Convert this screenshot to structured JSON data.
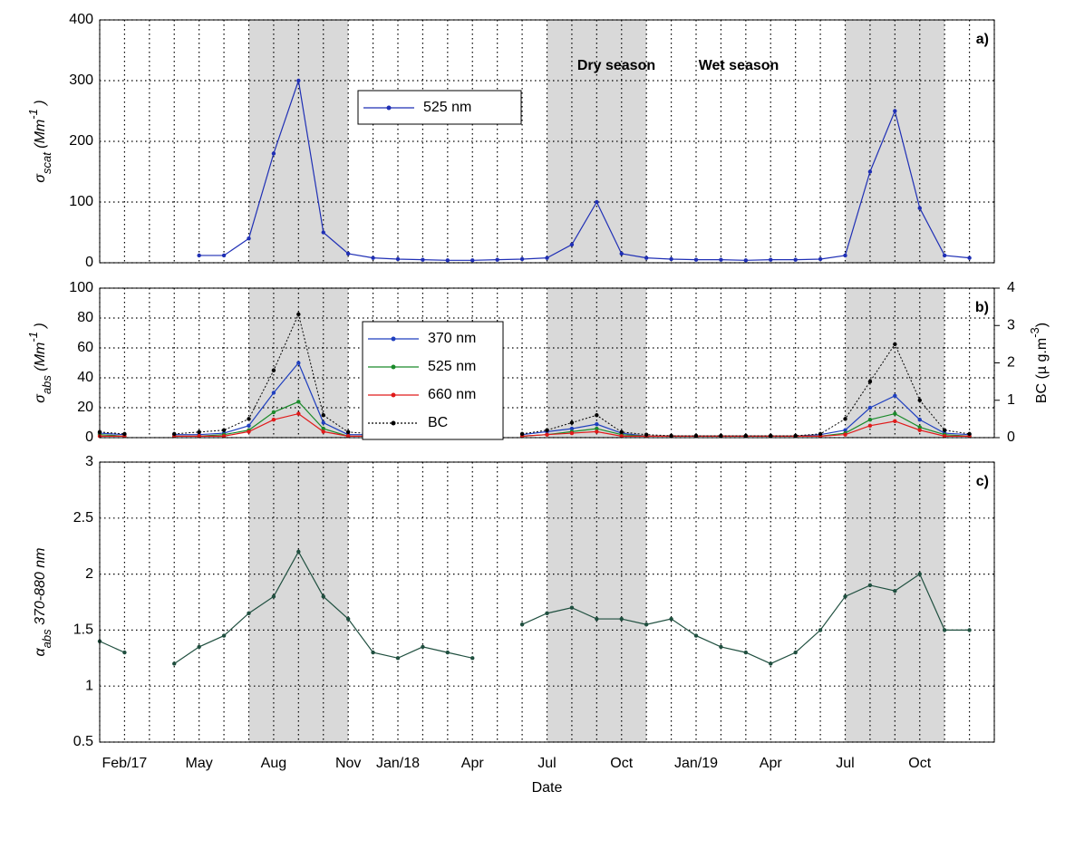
{
  "chart_data": [
    {
      "type": "line",
      "panel_label": "a)",
      "y_label": [
        {
          "text": "σ"
        },
        {
          "text": "scat",
          "shift": "sub"
        },
        {
          "text": " (Mm"
        },
        {
          "text": "-1",
          "shift": "sup"
        },
        {
          "text": " )"
        }
      ],
      "annotations": [
        "Dry season",
        "Wet season"
      ],
      "x": [
        "2017-01",
        "2017-02",
        "2017-03",
        "2017-04",
        "2017-05",
        "2017-06",
        "2017-07",
        "2017-08",
        "2017-09",
        "2017-10",
        "2017-11",
        "2017-12",
        "2018-01",
        "2018-02",
        "2018-03",
        "2018-04",
        "2018-05",
        "2018-06",
        "2018-07",
        "2018-08",
        "2018-09",
        "2018-10",
        "2018-11",
        "2018-12",
        "2019-01",
        "2019-02",
        "2019-03",
        "2019-04",
        "2019-05",
        "2019-06",
        "2019-07",
        "2019-08",
        "2019-09",
        "2019-10",
        "2019-11",
        "2019-12"
      ],
      "xlim": [
        "2017-01",
        "2020-01"
      ],
      "xminorticks": [
        "2017-01",
        "2017-02",
        "2017-03",
        "2017-04",
        "2017-05",
        "2017-06",
        "2017-07",
        "2017-08",
        "2017-09",
        "2017-10",
        "2017-11",
        "2017-12",
        "2018-01",
        "2018-02",
        "2018-03",
        "2018-04",
        "2018-05",
        "2018-06",
        "2018-07",
        "2018-08",
        "2018-09",
        "2018-10",
        "2018-11",
        "2018-12",
        "2019-01",
        "2019-02",
        "2019-03",
        "2019-04",
        "2019-05",
        "2019-06",
        "2019-07",
        "2019-08",
        "2019-09",
        "2019-10",
        "2019-11",
        "2019-12",
        "2020-01"
      ],
      "ylim": [
        0,
        400
      ],
      "yticks": [
        0,
        100,
        200,
        300,
        400
      ],
      "grid": true,
      "legend": true,
      "shaded_periods": [
        {
          "start": "2017-07",
          "end": "2017-11"
        },
        {
          "start": "2018-07",
          "end": "2018-11"
        },
        {
          "start": "2019-07",
          "end": "2019-11"
        }
      ],
      "series": [
        {
          "name": "525 nm",
          "color": "#1f2fb5",
          "values": [
            null,
            null,
            null,
            null,
            12,
            12,
            40,
            180,
            300,
            50,
            15,
            8,
            6,
            5,
            4,
            4,
            5,
            6,
            8,
            30,
            100,
            15,
            8,
            6,
            5,
            5,
            4,
            5,
            5,
            6,
            12,
            150,
            250,
            90,
            12,
            8
          ]
        }
      ]
    },
    {
      "type": "line",
      "panel_label": "b)",
      "y_label": [
        {
          "text": "σ"
        },
        {
          "text": "abs",
          "shift": "sub"
        },
        {
          "text": " (Mm"
        },
        {
          "text": "-1",
          "shift": "sup"
        },
        {
          "text": " )"
        }
      ],
      "y2_label": [
        {
          "text": "BC (µ g.m"
        },
        {
          "text": "-3",
          "shift": "sup"
        },
        {
          "text": ")"
        }
      ],
      "x": [
        "2017-01",
        "2017-02",
        "2017-03",
        "2017-04",
        "2017-05",
        "2017-06",
        "2017-07",
        "2017-08",
        "2017-09",
        "2017-10",
        "2017-11",
        "2017-12",
        "2018-01",
        "2018-02",
        "2018-03",
        "2018-04",
        "2018-05",
        "2018-06",
        "2018-07",
        "2018-08",
        "2018-09",
        "2018-10",
        "2018-11",
        "2018-12",
        "2019-01",
        "2019-02",
        "2019-03",
        "2019-04",
        "2019-05",
        "2019-06",
        "2019-07",
        "2019-08",
        "2019-09",
        "2019-10",
        "2019-11",
        "2019-12"
      ],
      "xlim": [
        "2017-01",
        "2020-01"
      ],
      "xminorticks": [
        "2017-01",
        "2017-02",
        "2017-03",
        "2017-04",
        "2017-05",
        "2017-06",
        "2017-07",
        "2017-08",
        "2017-09",
        "2017-10",
        "2017-11",
        "2017-12",
        "2018-01",
        "2018-02",
        "2018-03",
        "2018-04",
        "2018-05",
        "2018-06",
        "2018-07",
        "2018-08",
        "2018-09",
        "2018-10",
        "2018-11",
        "2018-12",
        "2019-01",
        "2019-02",
        "2019-03",
        "2019-04",
        "2019-05",
        "2019-06",
        "2019-07",
        "2019-08",
        "2019-09",
        "2019-10",
        "2019-11",
        "2019-12",
        "2020-01"
      ],
      "ylim": [
        0,
        100
      ],
      "yticks": [
        0,
        20,
        40,
        60,
        80,
        100
      ],
      "y2lim": [
        0,
        4
      ],
      "y2ticks": [
        0,
        1,
        2,
        3,
        4
      ],
      "grid": true,
      "legend": true,
      "shaded_periods": [
        {
          "start": "2017-07",
          "end": "2017-11"
        },
        {
          "start": "2018-07",
          "end": "2018-11"
        },
        {
          "start": "2019-07",
          "end": "2019-11"
        }
      ],
      "series": [
        {
          "name": "370 nm",
          "color": "#1f3fbf",
          "values": [
            3,
            2,
            null,
            2,
            2,
            3,
            8,
            30,
            50,
            10,
            2,
            2,
            1,
            1,
            1,
            1,
            null,
            2,
            4,
            6,
            9,
            3,
            1,
            1,
            1,
            1,
            1,
            1,
            1,
            2,
            5,
            20,
            28,
            12,
            3,
            2
          ]
        },
        {
          "name": "525 nm",
          "color": "#1a8a2a",
          "values": [
            2,
            1,
            null,
            1,
            1,
            2,
            5,
            17,
            24,
            6,
            1,
            1,
            1,
            1,
            1,
            1,
            null,
            1,
            2,
            4,
            6,
            2,
            1,
            1,
            1,
            1,
            1,
            1,
            1,
            1,
            3,
            12,
            16,
            7,
            2,
            1
          ]
        },
        {
          "name": "660 nm",
          "color": "#e01a1a",
          "values": [
            1,
            1,
            null,
            1,
            1,
            1,
            4,
            12,
            16,
            4,
            1,
            1,
            1,
            1,
            1,
            1,
            null,
            1,
            2,
            3,
            4,
            1,
            1,
            1,
            1,
            1,
            1,
            1,
            1,
            1,
            2,
            8,
            11,
            5,
            1,
            1
          ]
        },
        {
          "name": "BC",
          "color": "#000000",
          "style": "dotted",
          "axis": "y2",
          "values": [
            0.15,
            0.1,
            null,
            0.1,
            0.15,
            0.2,
            0.5,
            1.8,
            3.3,
            0.6,
            0.15,
            0.1,
            0.08,
            0.05,
            0.05,
            0.05,
            null,
            0.1,
            0.2,
            0.4,
            0.6,
            0.15,
            0.08,
            0.05,
            0.05,
            0.05,
            0.05,
            0.05,
            0.05,
            0.1,
            0.5,
            1.5,
            2.5,
            1.0,
            0.2,
            0.1
          ]
        }
      ]
    },
    {
      "type": "line",
      "panel_label": "c)",
      "y_label": [
        {
          "text": "α"
        },
        {
          "text": "abs",
          "shift": "sub"
        },
        {
          "text": " 370-880 nm"
        }
      ],
      "xlabel": "Date",
      "x": [
        "2017-01",
        "2017-02",
        "2017-03",
        "2017-04",
        "2017-05",
        "2017-06",
        "2017-07",
        "2017-08",
        "2017-09",
        "2017-10",
        "2017-11",
        "2017-12",
        "2018-01",
        "2018-02",
        "2018-03",
        "2018-04",
        "2018-05",
        "2018-06",
        "2018-07",
        "2018-08",
        "2018-09",
        "2018-10",
        "2018-11",
        "2018-12",
        "2019-01",
        "2019-02",
        "2019-03",
        "2019-04",
        "2019-05",
        "2019-06",
        "2019-07",
        "2019-08",
        "2019-09",
        "2019-10",
        "2019-11",
        "2019-12"
      ],
      "xlim": [
        "2017-01",
        "2020-01"
      ],
      "xminorticks": [
        "2017-01",
        "2017-02",
        "2017-03",
        "2017-04",
        "2017-05",
        "2017-06",
        "2017-07",
        "2017-08",
        "2017-09",
        "2017-10",
        "2017-11",
        "2017-12",
        "2018-01",
        "2018-02",
        "2018-03",
        "2018-04",
        "2018-05",
        "2018-06",
        "2018-07",
        "2018-08",
        "2018-09",
        "2018-10",
        "2018-11",
        "2018-12",
        "2019-01",
        "2019-02",
        "2019-03",
        "2019-04",
        "2019-05",
        "2019-06",
        "2019-07",
        "2019-08",
        "2019-09",
        "2019-10",
        "2019-11",
        "2019-12",
        "2020-01"
      ],
      "xticks": [
        {
          "value": "2017-02",
          "label": "Feb/17"
        },
        {
          "value": "2017-05",
          "label": "May"
        },
        {
          "value": "2017-08",
          "label": "Aug"
        },
        {
          "value": "2017-11",
          "label": "Nov"
        },
        {
          "value": "2018-01",
          "label": "Jan/18"
        },
        {
          "value": "2018-04",
          "label": "Apr"
        },
        {
          "value": "2018-07",
          "label": "Jul"
        },
        {
          "value": "2018-10",
          "label": "Oct"
        },
        {
          "value": "2019-01",
          "label": "Jan/19"
        },
        {
          "value": "2019-04",
          "label": "Apr"
        },
        {
          "value": "2019-07",
          "label": "Jul"
        },
        {
          "value": "2019-10",
          "label": "Oct"
        }
      ],
      "ylim": [
        0.5,
        3
      ],
      "yticks": [
        0.5,
        1,
        1.5,
        2,
        2.5,
        3
      ],
      "grid": true,
      "shaded_periods": [
        {
          "start": "2017-07",
          "end": "2017-11"
        },
        {
          "start": "2018-07",
          "end": "2018-11"
        },
        {
          "start": "2019-07",
          "end": "2019-11"
        }
      ],
      "series": [
        {
          "color": "#1f4f3f",
          "values": [
            1.4,
            1.3,
            null,
            1.2,
            1.35,
            1.45,
            1.65,
            1.8,
            2.2,
            1.8,
            1.6,
            1.3,
            1.25,
            1.35,
            1.3,
            1.25,
            null,
            1.55,
            1.65,
            1.7,
            1.6,
            1.6,
            1.55,
            1.6,
            1.45,
            1.35,
            1.3,
            1.2,
            1.3,
            1.5,
            1.8,
            1.9,
            1.85,
            2.0,
            1.5,
            1.5
          ]
        }
      ]
    }
  ]
}
